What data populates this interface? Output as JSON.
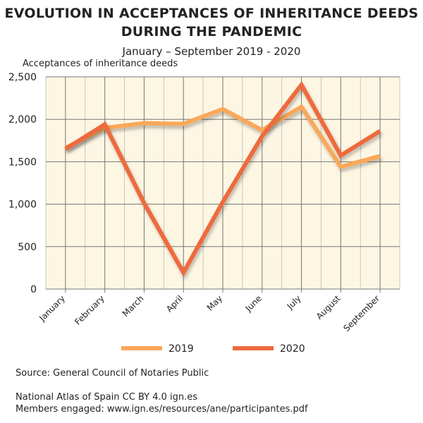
{
  "chart_data": {
    "type": "line",
    "title": "EVOLUTION IN ACCEPTANCES OF INHERITANCE DEEDS DURING THE PANDEMIC",
    "title_lines": [
      "EVOLUTION IN ACCEPTANCES OF INHERITANCE DEEDS",
      "DURING THE PANDEMIC"
    ],
    "subtitle": "January – September 2019 - 2020",
    "ylabel": "Acceptances of inheritance deeds",
    "xlabel": "",
    "categories": [
      "January",
      "February",
      "March",
      "April",
      "May",
      "June",
      "July",
      "August",
      "September"
    ],
    "ylim": [
      0,
      2500
    ],
    "yticks": [
      0,
      500,
      1000,
      1500,
      2000,
      2500
    ],
    "ytick_labels": [
      "0",
      "500",
      "1,000",
      "1,500",
      "2,000",
      "2,500"
    ],
    "grid": true,
    "legend": "bottom",
    "background_color": "#fdf6e3",
    "series": [
      {
        "name": "2019",
        "color": "#f9a85a",
        "values": [
          1663,
          1899,
          1954,
          1946,
          2120,
          1871,
          2148,
          1441,
          1566
        ]
      },
      {
        "name": "2020",
        "color": "#ee6a3c",
        "values": [
          1649,
          1940,
          1012,
          194,
          1025,
          1801,
          2406,
          1574,
          1862
        ]
      }
    ]
  },
  "footer": {
    "source": "Source: General Council of Notaries Public",
    "credit": "National Atlas of Spain CC BY 4.0 ign.es",
    "members": "Members engaged: www.ign.es/resources/ane/participantes.pdf"
  }
}
